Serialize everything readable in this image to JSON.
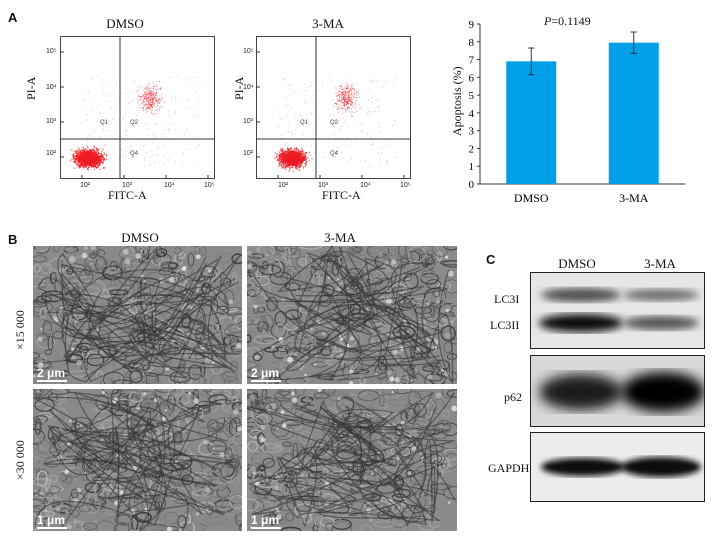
{
  "panel_a": {
    "letter": "A",
    "flow": [
      {
        "title": "DMSO",
        "ylabel": "PI-A",
        "xlabel": "FITC-A"
      },
      {
        "title": "3-MA",
        "ylabel": "PI-A",
        "xlabel": "FITC-A"
      }
    ],
    "ticks": [
      "10²",
      "10³",
      "10⁴",
      "10⁵"
    ],
    "quadrants": [
      "Q1",
      "Q2",
      "Q4"
    ],
    "colors": {
      "dots": "#ee1c24",
      "bars": "#00a0e9"
    }
  },
  "chart_data": {
    "type": "bar",
    "categories": [
      "DMSO",
      "3-MA"
    ],
    "values": [
      6.9,
      7.95
    ],
    "errors": [
      0.75,
      0.6
    ],
    "annotation": "P=0.1149",
    "annotation_p": "P",
    "annotation_val": "=0.1149",
    "ylabel": "Apoptosis (%)",
    "ylim": [
      0,
      9
    ],
    "yticks": [
      "0",
      "1",
      "2",
      "3",
      "4",
      "5",
      "6",
      "7",
      "8",
      "9"
    ],
    "grid": false
  },
  "panel_b": {
    "letter": "B",
    "columns": [
      "DMSO",
      "3-MA"
    ],
    "rows": [
      "×15 000",
      "×30 000"
    ],
    "scales": [
      "2 μm",
      "2 μm",
      "1 μm",
      "1 μm"
    ]
  },
  "panel_c": {
    "letter": "C",
    "columns": [
      "DMSO",
      "3-MA"
    ],
    "bands": [
      "LC3I",
      "LC3II",
      "p62",
      "GAPDH"
    ]
  }
}
